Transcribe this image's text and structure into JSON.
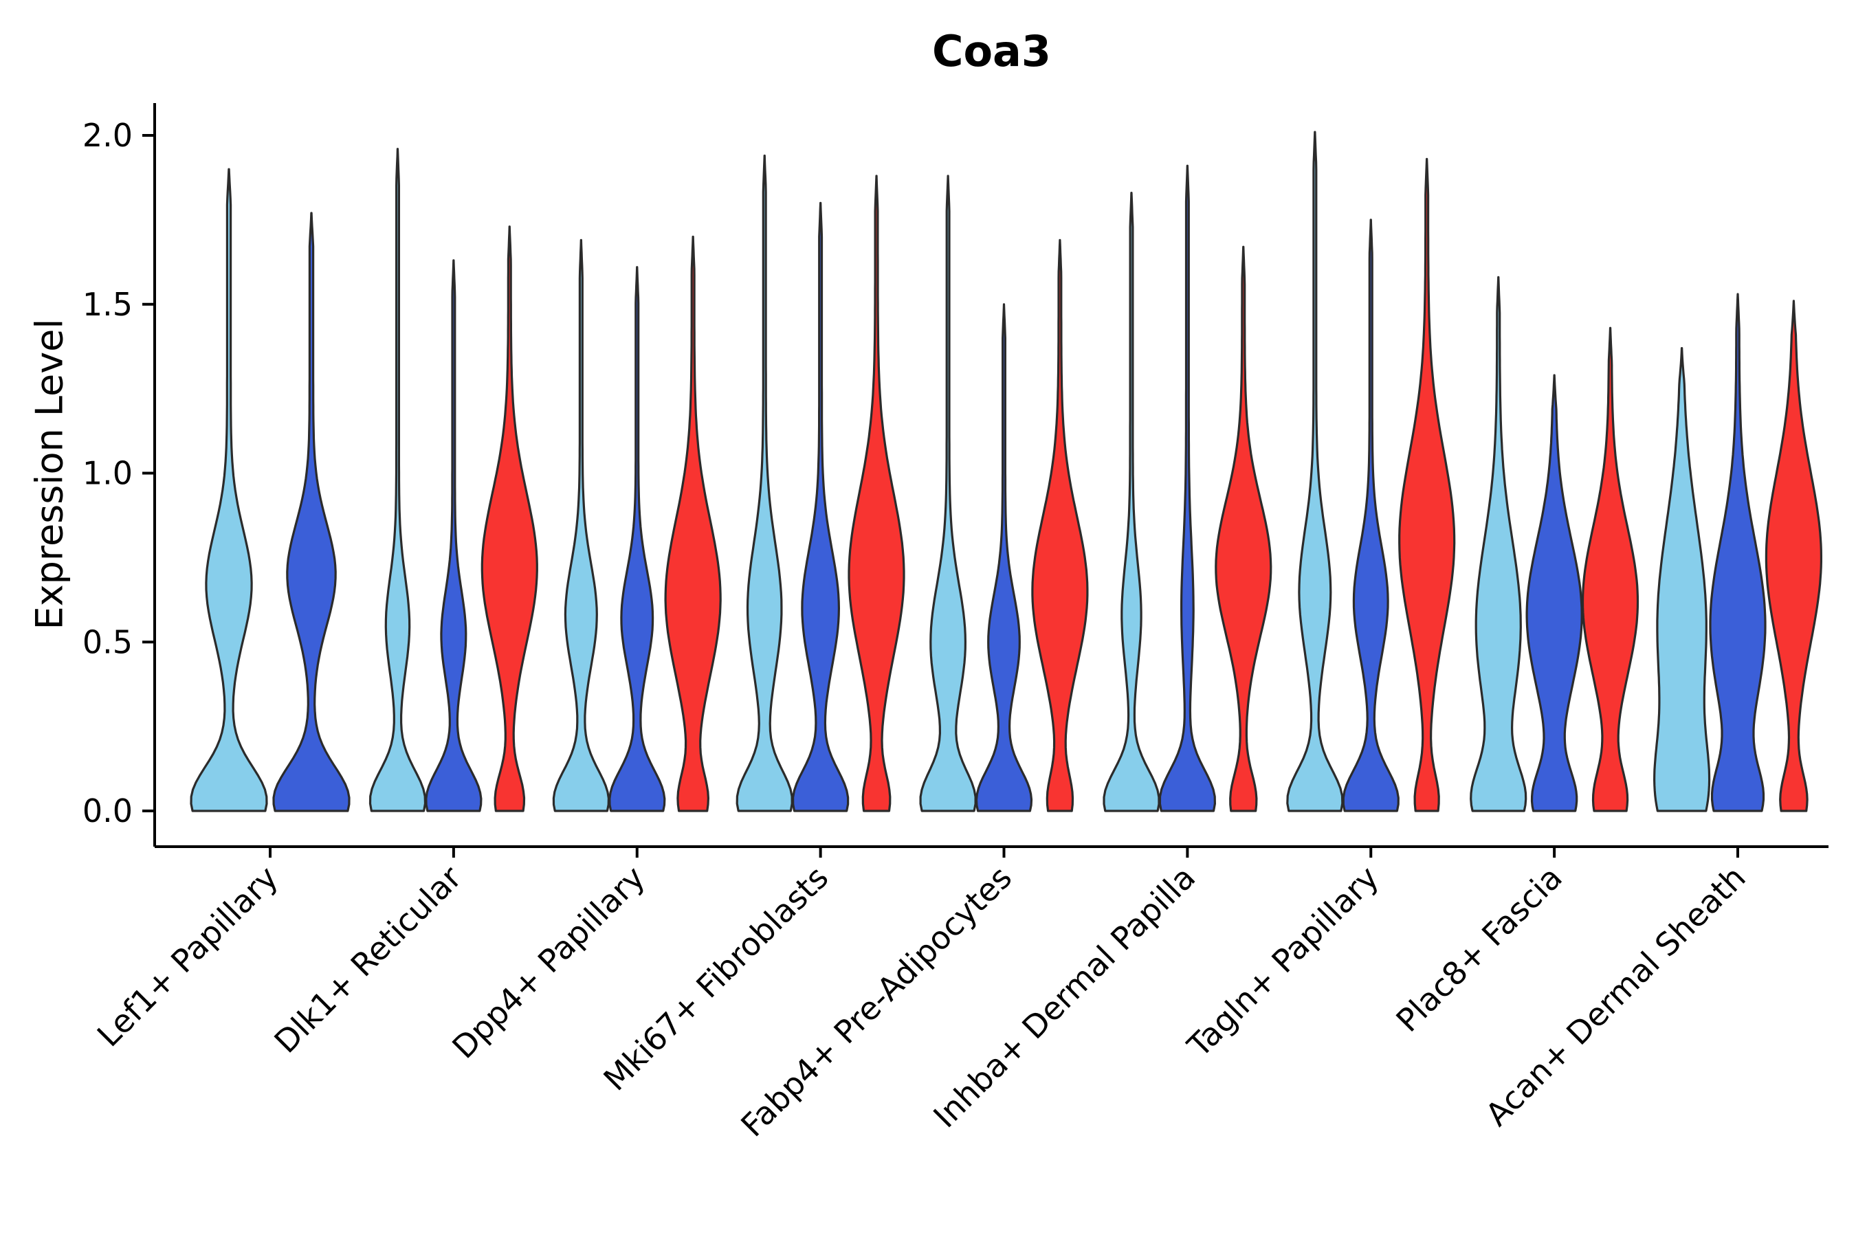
{
  "page": {
    "background": "#ffffff"
  },
  "chart_data": {
    "type": "violin",
    "title": "Coa3",
    "ylabel": "Expression Level",
    "xlabel": "",
    "ylim": [
      0,
      2.05
    ],
    "grid": false,
    "legend": null,
    "yticks": [
      {
        "v": 0.0,
        "label": "0.0"
      },
      {
        "v": 0.5,
        "label": "0.5"
      },
      {
        "v": 1.0,
        "label": "1.0"
      },
      {
        "v": 1.5,
        "label": "1.5"
      },
      {
        "v": 2.0,
        "label": "2.0"
      }
    ],
    "categories": [
      "Lef1+ Papillary",
      "Dlk1+ Reticular",
      "Dpp4+ Papillary",
      "Mki67+ Fibroblasts",
      "Fabp4+ Pre-Adipocytes",
      "Inhba+ Dermal Papilla",
      "Tagln+ Papillary",
      "Plac8+ Fascia",
      "Acan+ Dermal Sheath"
    ],
    "colors": {
      "lightblue": "#87CEEB",
      "blue": "#3B5FD8",
      "red": "#F83431"
    },
    "outline": "#2B2B2B",
    "groups": [
      {
        "category": "Lef1+ Papillary",
        "violins": [
          {
            "color": "lightblue",
            "tip": 1.9,
            "bumps": [
              [
                0.03,
                0.1,
                1.0
              ],
              [
                0.67,
                0.16,
                0.58
              ]
            ]
          },
          {
            "color": "blue",
            "tip": 1.77,
            "bumps": [
              [
                0.03,
                0.1,
                1.0
              ],
              [
                0.7,
                0.15,
                0.62
              ]
            ]
          }
        ]
      },
      {
        "category": "Dlk1+ Reticular",
        "violins": [
          {
            "color": "lightblue",
            "tip": 1.96,
            "bumps": [
              [
                0.03,
                0.09,
                1.0
              ],
              [
                0.55,
                0.14,
                0.4
              ]
            ]
          },
          {
            "color": "blue",
            "tip": 1.63,
            "bumps": [
              [
                0.03,
                0.09,
                1.0
              ],
              [
                0.52,
                0.13,
                0.42
              ]
            ]
          },
          {
            "color": "red",
            "tip": 1.73,
            "bumps": [
              [
                0.03,
                0.08,
                0.5
              ],
              [
                0.72,
                0.22,
                1.0
              ]
            ]
          }
        ]
      },
      {
        "category": "Dpp4+ Papillary",
        "violins": [
          {
            "color": "lightblue",
            "tip": 1.69,
            "bumps": [
              [
                0.03,
                0.09,
                1.0
              ],
              [
                0.58,
                0.15,
                0.55
              ]
            ]
          },
          {
            "color": "blue",
            "tip": 1.61,
            "bumps": [
              [
                0.03,
                0.09,
                1.0
              ],
              [
                0.57,
                0.14,
                0.55
              ]
            ]
          },
          {
            "color": "red",
            "tip": 1.7,
            "bumps": [
              [
                0.03,
                0.08,
                0.5
              ],
              [
                0.63,
                0.23,
                1.0
              ]
            ]
          }
        ]
      },
      {
        "category": "Mki67+ Fibroblasts",
        "violins": [
          {
            "color": "lightblue",
            "tip": 1.94,
            "bumps": [
              [
                0.03,
                0.09,
                1.0
              ],
              [
                0.6,
                0.19,
                0.6
              ]
            ]
          },
          {
            "color": "blue",
            "tip": 1.8,
            "bumps": [
              [
                0.03,
                0.09,
                1.0
              ],
              [
                0.6,
                0.17,
                0.65
              ]
            ]
          },
          {
            "color": "red",
            "tip": 1.88,
            "bumps": [
              [
                0.03,
                0.08,
                0.45
              ],
              [
                0.7,
                0.24,
                1.0
              ]
            ]
          }
        ]
      },
      {
        "category": "Fabp4+ Pre-Adipocytes",
        "violins": [
          {
            "color": "lightblue",
            "tip": 1.88,
            "bumps": [
              [
                0.03,
                0.09,
                1.0
              ],
              [
                0.5,
                0.17,
                0.62
              ]
            ]
          },
          {
            "color": "blue",
            "tip": 1.5,
            "bumps": [
              [
                0.03,
                0.09,
                1.0
              ],
              [
                0.5,
                0.14,
                0.55
              ]
            ]
          },
          {
            "color": "red",
            "tip": 1.69,
            "bumps": [
              [
                0.03,
                0.08,
                0.42
              ],
              [
                0.65,
                0.22,
                1.0
              ]
            ]
          }
        ]
      },
      {
        "category": "Inhba+ Dermal Papilla",
        "violins": [
          {
            "color": "lightblue",
            "tip": 1.83,
            "bumps": [
              [
                0.03,
                0.09,
                1.0
              ],
              [
                0.58,
                0.15,
                0.32
              ]
            ]
          },
          {
            "color": "blue",
            "tip": 1.91,
            "bumps": [
              [
                0.03,
                0.09,
                1.0
              ],
              [
                0.6,
                0.18,
                0.18
              ]
            ]
          },
          {
            "color": "red",
            "tip": 1.67,
            "bumps": [
              [
                0.03,
                0.08,
                0.45
              ],
              [
                0.72,
                0.2,
                1.0
              ]
            ]
          }
        ]
      },
      {
        "category": "Tagln+ Papillary",
        "violins": [
          {
            "color": "lightblue",
            "tip": 2.01,
            "bumps": [
              [
                0.03,
                0.09,
                1.0
              ],
              [
                0.65,
                0.18,
                0.55
              ]
            ]
          },
          {
            "color": "blue",
            "tip": 1.75,
            "bumps": [
              [
                0.03,
                0.09,
                1.0
              ],
              [
                0.62,
                0.16,
                0.6
              ]
            ]
          },
          {
            "color": "red",
            "tip": 1.93,
            "bumps": [
              [
                0.03,
                0.08,
                0.4
              ],
              [
                0.8,
                0.26,
                1.0
              ]
            ]
          }
        ]
      },
      {
        "category": "Plac8+ Fascia",
        "violins": [
          {
            "color": "lightblue",
            "tip": 1.58,
            "bumps": [
              [
                0.03,
                0.1,
                0.9
              ],
              [
                0.55,
                0.25,
                0.8
              ]
            ]
          },
          {
            "color": "blue",
            "tip": 1.29,
            "bumps": [
              [
                0.03,
                0.09,
                0.7
              ],
              [
                0.58,
                0.22,
                0.92
              ]
            ]
          },
          {
            "color": "red",
            "tip": 1.43,
            "bumps": [
              [
                0.03,
                0.09,
                0.55
              ],
              [
                0.62,
                0.22,
                0.95
              ]
            ]
          }
        ]
      },
      {
        "category": "Acan+ Dermal Sheath",
        "violins": [
          {
            "color": "lightblue",
            "tip": 1.37,
            "bumps": [
              [
                0.05,
                0.15,
                0.85
              ],
              [
                0.55,
                0.3,
                1.0
              ]
            ]
          },
          {
            "color": "blue",
            "tip": 1.53,
            "bumps": [
              [
                0.03,
                0.1,
                0.75
              ],
              [
                0.55,
                0.25,
                0.92
              ]
            ]
          },
          {
            "color": "red",
            "tip": 1.51,
            "bumps": [
              [
                0.03,
                0.08,
                0.45
              ],
              [
                0.75,
                0.25,
                1.0
              ]
            ]
          }
        ]
      }
    ]
  }
}
